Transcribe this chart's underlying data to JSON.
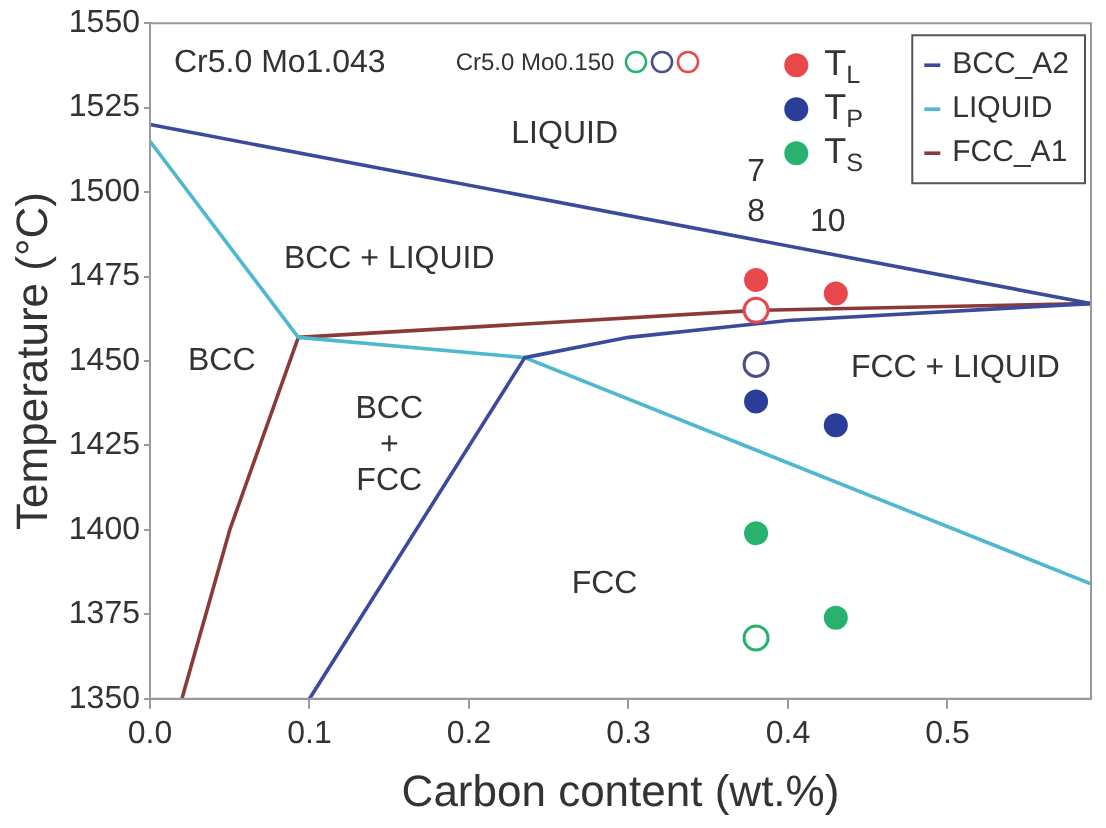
{
  "chart_data": {
    "type": "scatter",
    "xlabel": "Carbon content (wt.%)",
    "ylabel": "Temperature (°C)",
    "xlim": [
      0,
      0.59
    ],
    "ylim": [
      1350,
      1550
    ],
    "xticks": [
      {
        "value": 0,
        "label": "0.0"
      },
      0.1,
      0.2,
      0.3,
      0.4,
      0.5
    ],
    "yticks": [
      1350,
      1375,
      1400,
      1425,
      1450,
      1475,
      1500,
      1525,
      1550
    ],
    "grid": false,
    "legend": "top right",
    "series": [
      {
        "name": "T$_{L}$",
        "marker": "circle",
        "color": "#e8474c",
        "x": [
          0.38,
          0.43
        ],
        "values": [
          1474,
          1470
        ]
      },
      {
        "name": "T$_{P}$",
        "marker": "circle",
        "color": "#2b3d9a",
        "x": [
          0.38,
          0.43
        ],
        "values": [
          1438,
          1431
        ]
      },
      {
        "name": "T$_{S}$",
        "marker": "circle",
        "color": "#27b36e",
        "x": [
          0.38,
          0.43
        ],
        "values": [
          1399,
          1374
        ]
      },
      {
        "marker": "circle",
        "color": "#27b36e",
        "x": [
          0.38
        ],
        "values": [
          1368
        ]
      },
      {
        "marker": "circle",
        "color": "#4a4f8a",
        "x": [
          0.38
        ],
        "values": [
          1449
        ]
      },
      {
        "marker": "circle",
        "color": "#e8474c",
        "x": [
          0.38
        ],
        "values": [
          1465
        ]
      },
      {
        "name": "BCC_A2",
        "type": "line",
        "color": "#3b4a9a",
        "x": [
          0,
          0.59
        ],
        "values": [
          1520,
          1467
        ]
      },
      {
        "type": "line",
        "color": "#3b4a9a",
        "x": [
          0.59,
          0.4,
          0.3,
          0.235,
          0.1
        ],
        "values": [
          1467,
          1462,
          1457,
          1451,
          1350
        ]
      },
      {
        "name": "LIQUID",
        "type": "line",
        "color": "#4db8d0",
        "x": [
          0,
          0.093,
          0.235,
          0.59
        ],
        "values": [
          1515,
          1457,
          1451,
          1384
        ]
      },
      {
        "name": "FCC_A1",
        "type": "line",
        "color": "#8b3a3a",
        "x": [
          0.02,
          0.05,
          0.093,
          0.38,
          0.59
        ],
        "values": [
          1350,
          1400,
          1457,
          1465,
          1467
        ]
      }
    ],
    "annotations": [
      "Cr5.0 Mo1.043",
      "Cr5.0 Mo0.150",
      "LIQUID",
      "BCC + LIQUID",
      "BCC",
      "BCC\n+\nFCC",
      "FCC + LIQUID",
      "FCC",
      "7",
      "8",
      "10"
    ]
  }
}
